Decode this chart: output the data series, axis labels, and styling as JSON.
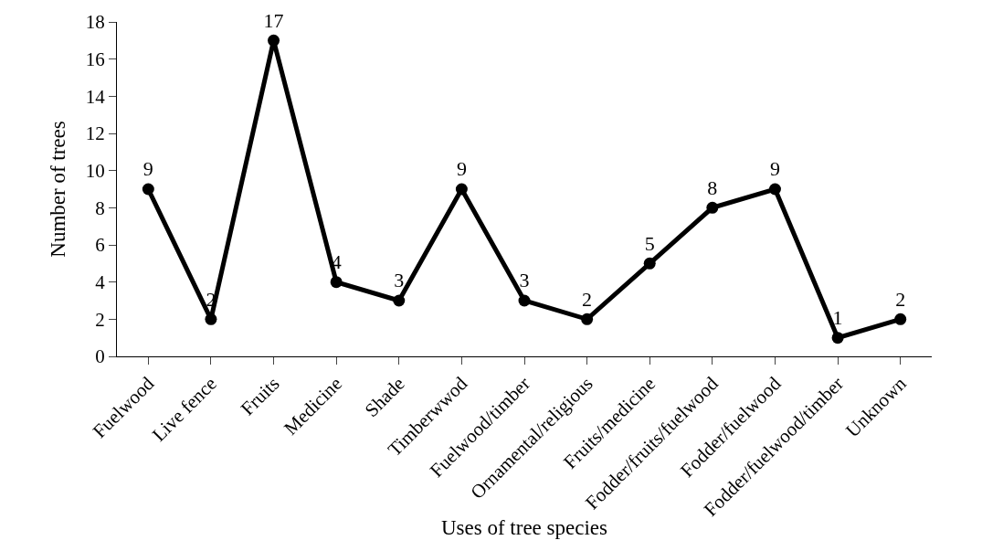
{
  "chart_data": {
    "type": "line",
    "xlabel": "Uses of tree species",
    "ylabel": "Number of trees",
    "categories": [
      "Fuelwood",
      "Live fence",
      "Fruits",
      "Medicine",
      "Shade",
      "Timberwwod",
      "Fuelwood/timber",
      "Ornamental/religious",
      "Fruits/medicine",
      "Fodder/fruits/fuelwood",
      "Fodder/fuelwood",
      "Fodder/fuelwood/timber",
      "Unknown"
    ],
    "series": [
      {
        "color": "#000000",
        "values": [
          9,
          2,
          17,
          4,
          3,
          9,
          3,
          2,
          5,
          8,
          9,
          1,
          2
        ]
      }
    ],
    "ylim": [
      0,
      18
    ],
    "yticks": [
      0,
      2,
      4,
      6,
      8,
      10,
      12,
      14,
      16,
      18
    ],
    "marker": "circle",
    "line_style": "solid",
    "data_labels": true
  }
}
